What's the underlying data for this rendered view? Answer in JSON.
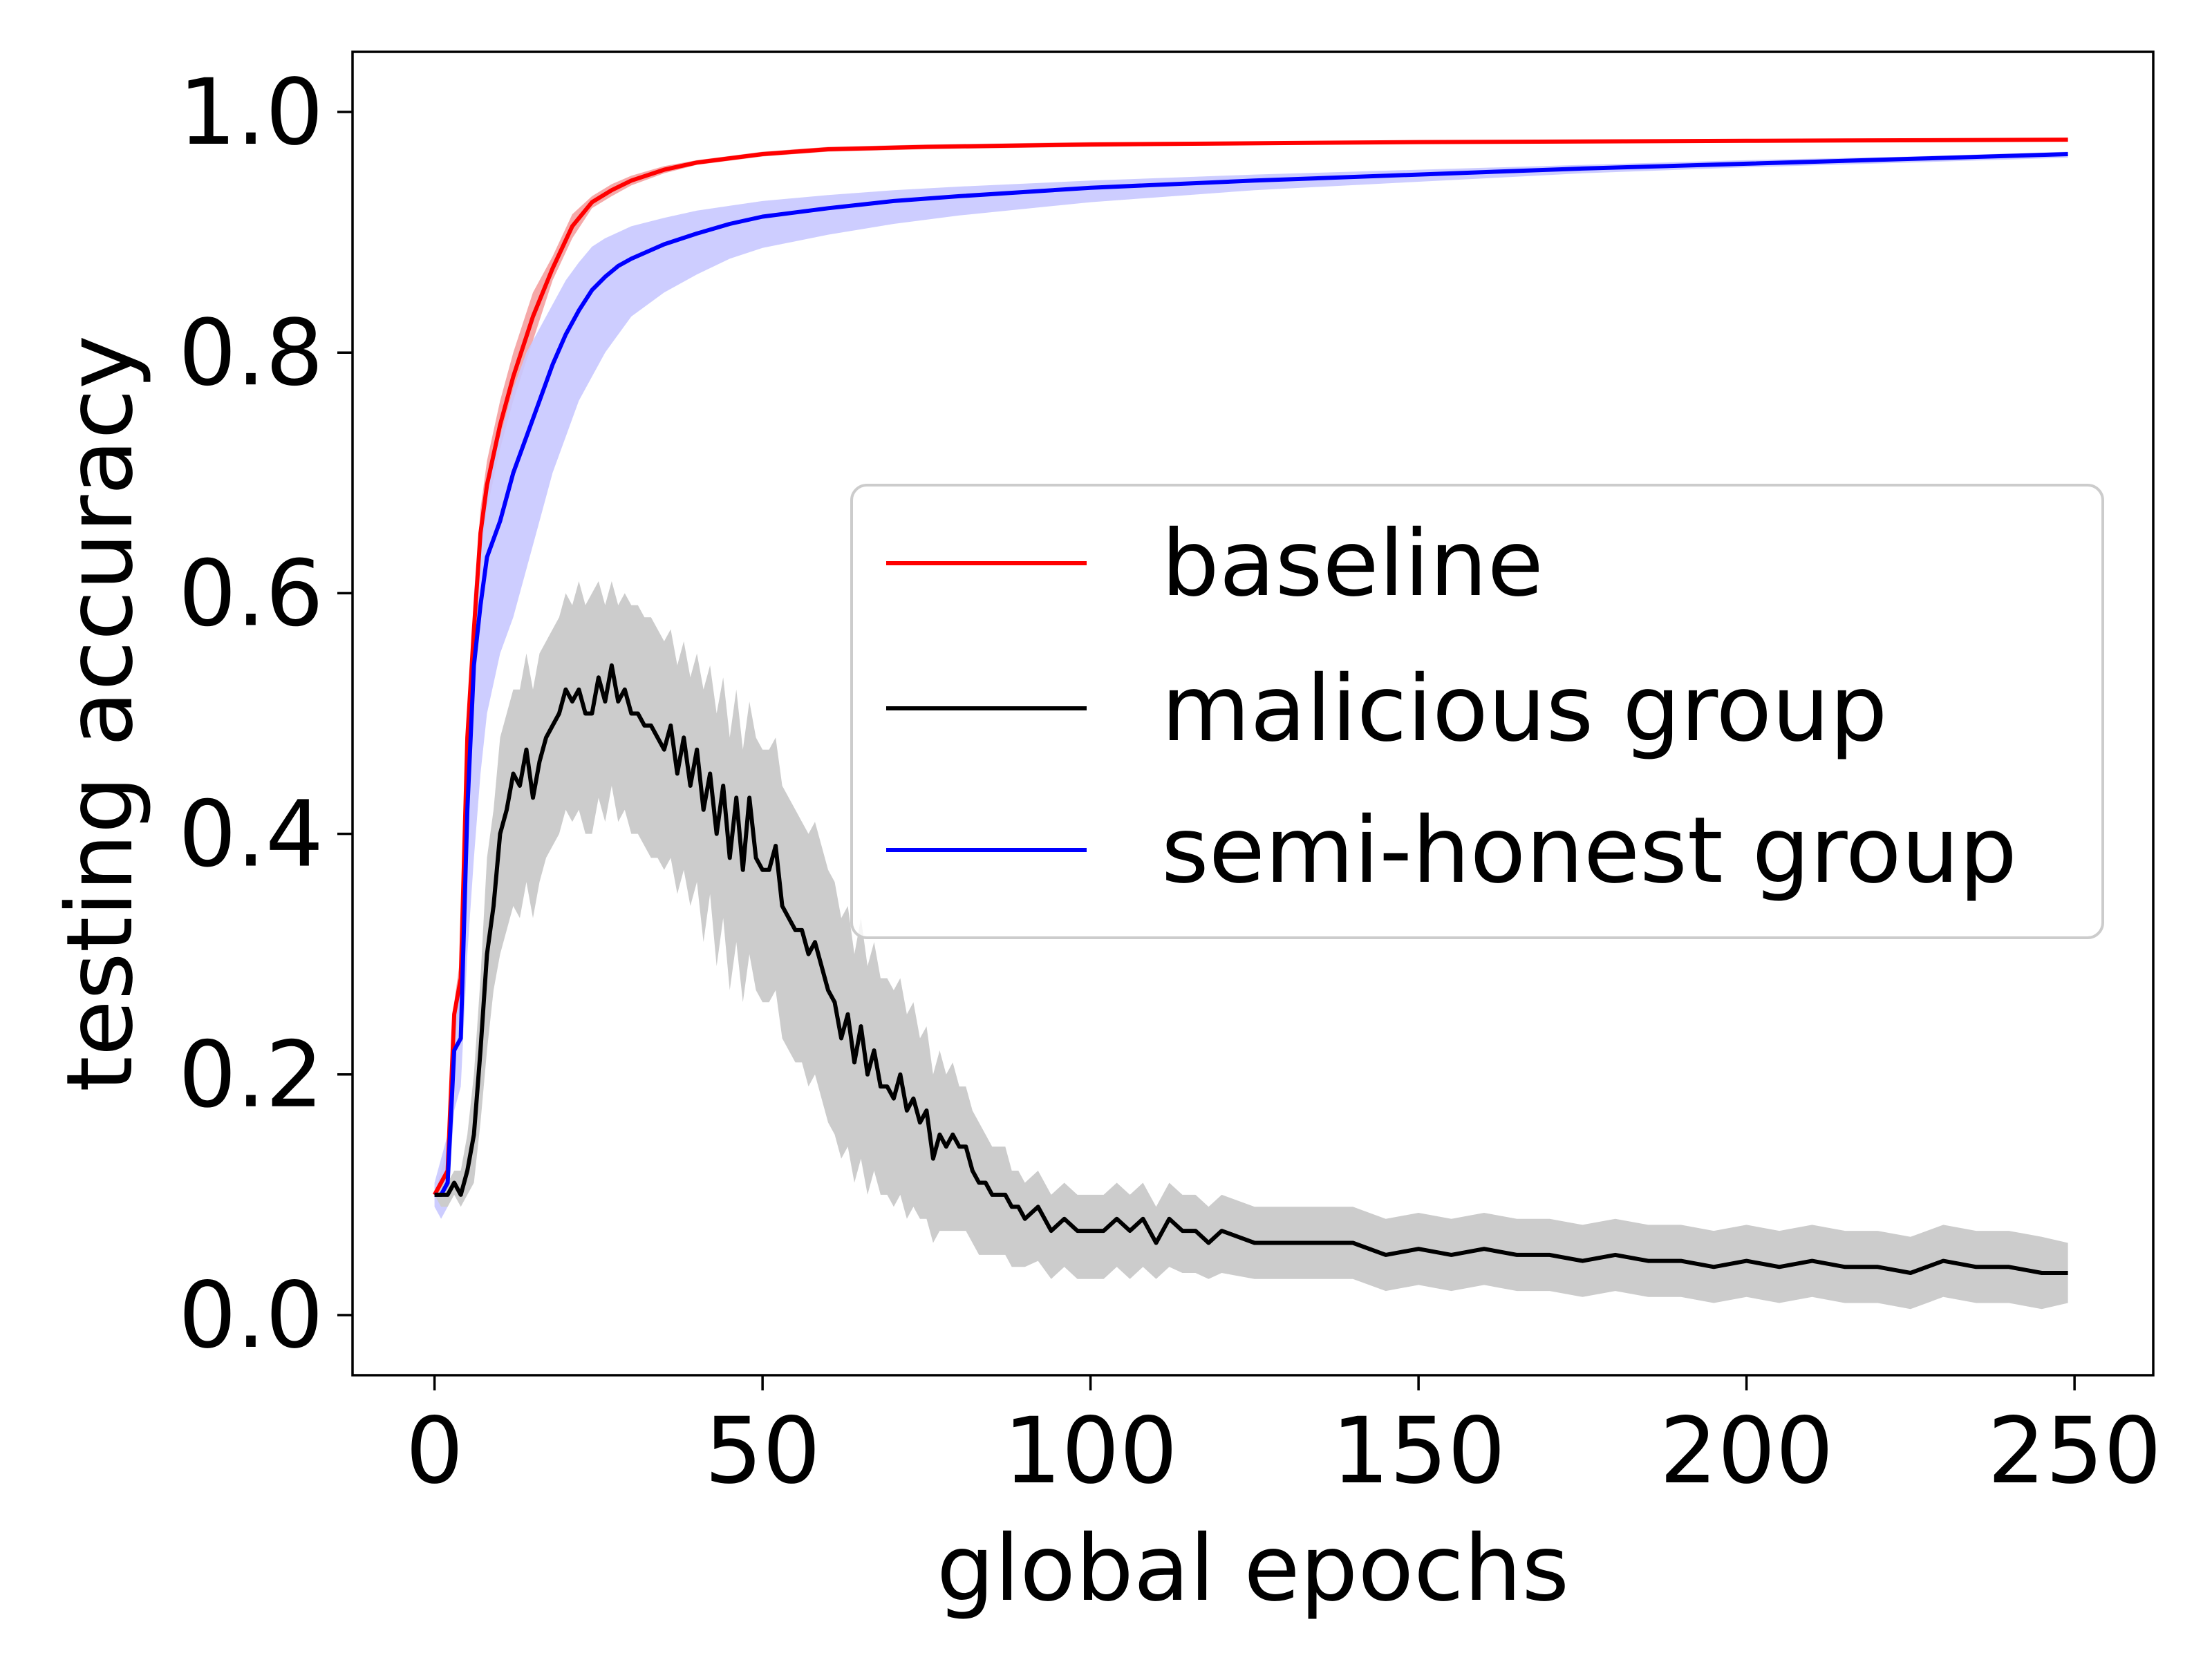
{
  "chart_data": {
    "type": "line",
    "xlabel": "global epochs",
    "ylabel": "testing accuracy",
    "xlim": [
      -12.5,
      262
    ],
    "ylim": [
      -0.05,
      1.05
    ],
    "xticks": [
      0,
      50,
      100,
      150,
      200,
      250
    ],
    "yticks": [
      0.0,
      0.2,
      0.4,
      0.6,
      0.8,
      1.0
    ],
    "xtick_labels": [
      "0",
      "50",
      "100",
      "150",
      "200",
      "250"
    ],
    "ytick_labels": [
      "0.0",
      "0.2",
      "0.4",
      "0.6",
      "0.8",
      "1.0"
    ],
    "grid": false,
    "legend_position": "center-right",
    "series": [
      {
        "name": "baseline",
        "color": "#ff0000",
        "band_color": "#f4a0a0",
        "x": [
          0,
          1,
          2,
          3,
          4,
          5,
          6,
          7,
          8,
          10,
          12,
          15,
          18,
          21,
          24,
          27,
          30,
          35,
          40,
          50,
          60,
          75,
          100,
          150,
          200,
          249
        ],
        "y": [
          0.1,
          0.11,
          0.12,
          0.25,
          0.28,
          0.48,
          0.57,
          0.65,
          0.69,
          0.74,
          0.78,
          0.83,
          0.87,
          0.905,
          0.925,
          0.935,
          0.943,
          0.952,
          0.958,
          0.965,
          0.969,
          0.971,
          0.973,
          0.975,
          0.976,
          0.977
        ],
        "upper": [
          0.1,
          0.12,
          0.14,
          0.26,
          0.3,
          0.5,
          0.59,
          0.67,
          0.71,
          0.76,
          0.8,
          0.85,
          0.88,
          0.915,
          0.93,
          0.94,
          0.947,
          0.955,
          0.96,
          0.967,
          0.971,
          0.973,
          0.975,
          0.976,
          0.977,
          0.978
        ],
        "lower": [
          0.1,
          0.1,
          0.11,
          0.23,
          0.26,
          0.46,
          0.55,
          0.63,
          0.67,
          0.72,
          0.76,
          0.81,
          0.86,
          0.895,
          0.92,
          0.93,
          0.939,
          0.949,
          0.956,
          0.963,
          0.967,
          0.969,
          0.971,
          0.974,
          0.975,
          0.976
        ]
      },
      {
        "name": "malicious group",
        "color": "#000000",
        "band_color": "#cccccc",
        "x": [
          0,
          1,
          2,
          3,
          4,
          5,
          6,
          7,
          8,
          9,
          10,
          11,
          12,
          13,
          14,
          15,
          16,
          17,
          18,
          19,
          20,
          21,
          22,
          23,
          24,
          25,
          26,
          27,
          28,
          29,
          30,
          31,
          32,
          33,
          34,
          35,
          36,
          37,
          38,
          39,
          40,
          41,
          42,
          43,
          44,
          45,
          46,
          47,
          48,
          49,
          50,
          51,
          52,
          53,
          54,
          55,
          56,
          57,
          58,
          59,
          60,
          61,
          62,
          63,
          64,
          65,
          66,
          67,
          68,
          69,
          70,
          71,
          72,
          73,
          74,
          75,
          76,
          77,
          78,
          79,
          80,
          81,
          82,
          83,
          84,
          85,
          86,
          87,
          88,
          89,
          90,
          92,
          94,
          96,
          98,
          100,
          102,
          104,
          106,
          108,
          110,
          112,
          114,
          116,
          118,
          120,
          125,
          130,
          135,
          140,
          145,
          150,
          155,
          160,
          165,
          170,
          175,
          180,
          185,
          190,
          195,
          200,
          205,
          210,
          215,
          220,
          225,
          230,
          235,
          240,
          245,
          249
        ],
        "y": [
          0.1,
          0.1,
          0.1,
          0.11,
          0.1,
          0.12,
          0.15,
          0.22,
          0.3,
          0.34,
          0.4,
          0.42,
          0.45,
          0.44,
          0.47,
          0.43,
          0.46,
          0.48,
          0.49,
          0.5,
          0.52,
          0.51,
          0.52,
          0.5,
          0.5,
          0.53,
          0.51,
          0.54,
          0.51,
          0.52,
          0.5,
          0.5,
          0.49,
          0.49,
          0.48,
          0.47,
          0.49,
          0.45,
          0.48,
          0.44,
          0.47,
          0.42,
          0.45,
          0.4,
          0.44,
          0.38,
          0.43,
          0.37,
          0.43,
          0.38,
          0.37,
          0.37,
          0.39,
          0.34,
          0.33,
          0.32,
          0.32,
          0.3,
          0.31,
          0.29,
          0.27,
          0.26,
          0.23,
          0.25,
          0.21,
          0.24,
          0.2,
          0.22,
          0.19,
          0.19,
          0.18,
          0.2,
          0.17,
          0.18,
          0.16,
          0.17,
          0.13,
          0.15,
          0.14,
          0.15,
          0.14,
          0.14,
          0.12,
          0.11,
          0.11,
          0.1,
          0.1,
          0.1,
          0.09,
          0.09,
          0.08,
          0.09,
          0.07,
          0.08,
          0.07,
          0.07,
          0.07,
          0.08,
          0.07,
          0.08,
          0.06,
          0.08,
          0.07,
          0.07,
          0.06,
          0.07,
          0.06,
          0.06,
          0.06,
          0.06,
          0.05,
          0.055,
          0.05,
          0.055,
          0.05,
          0.05,
          0.045,
          0.05,
          0.045,
          0.045,
          0.04,
          0.045,
          0.04,
          0.045,
          0.04,
          0.04,
          0.035,
          0.045,
          0.04,
          0.04,
          0.035,
          0.035
        ],
        "upper": [
          0.1,
          0.11,
          0.11,
          0.12,
          0.12,
          0.15,
          0.2,
          0.28,
          0.38,
          0.42,
          0.48,
          0.5,
          0.52,
          0.52,
          0.55,
          0.52,
          0.55,
          0.56,
          0.57,
          0.58,
          0.6,
          0.59,
          0.61,
          0.59,
          0.6,
          0.61,
          0.59,
          0.61,
          0.59,
          0.6,
          0.59,
          0.59,
          0.58,
          0.58,
          0.57,
          0.56,
          0.57,
          0.54,
          0.56,
          0.53,
          0.55,
          0.52,
          0.54,
          0.5,
          0.53,
          0.48,
          0.52,
          0.47,
          0.51,
          0.48,
          0.47,
          0.47,
          0.48,
          0.44,
          0.43,
          0.42,
          0.41,
          0.4,
          0.41,
          0.39,
          0.37,
          0.36,
          0.33,
          0.34,
          0.3,
          0.33,
          0.29,
          0.31,
          0.28,
          0.28,
          0.27,
          0.28,
          0.25,
          0.26,
          0.23,
          0.24,
          0.2,
          0.22,
          0.2,
          0.21,
          0.19,
          0.19,
          0.17,
          0.16,
          0.15,
          0.14,
          0.14,
          0.14,
          0.12,
          0.12,
          0.11,
          0.12,
          0.1,
          0.11,
          0.1,
          0.1,
          0.1,
          0.11,
          0.1,
          0.11,
          0.09,
          0.11,
          0.1,
          0.1,
          0.09,
          0.1,
          0.09,
          0.09,
          0.09,
          0.09,
          0.08,
          0.085,
          0.08,
          0.085,
          0.08,
          0.08,
          0.075,
          0.08,
          0.075,
          0.075,
          0.07,
          0.075,
          0.07,
          0.075,
          0.07,
          0.07,
          0.065,
          0.075,
          0.07,
          0.07,
          0.065,
          0.06
        ],
        "lower": [
          0.1,
          0.09,
          0.09,
          0.1,
          0.09,
          0.1,
          0.11,
          0.16,
          0.22,
          0.27,
          0.3,
          0.32,
          0.34,
          0.33,
          0.36,
          0.33,
          0.36,
          0.38,
          0.39,
          0.4,
          0.42,
          0.41,
          0.42,
          0.4,
          0.4,
          0.43,
          0.41,
          0.44,
          0.41,
          0.42,
          0.4,
          0.4,
          0.39,
          0.38,
          0.38,
          0.37,
          0.38,
          0.35,
          0.37,
          0.34,
          0.36,
          0.31,
          0.35,
          0.29,
          0.33,
          0.27,
          0.31,
          0.26,
          0.3,
          0.27,
          0.26,
          0.26,
          0.27,
          0.23,
          0.22,
          0.21,
          0.21,
          0.19,
          0.2,
          0.18,
          0.16,
          0.15,
          0.13,
          0.14,
          0.11,
          0.13,
          0.1,
          0.12,
          0.1,
          0.1,
          0.09,
          0.1,
          0.08,
          0.09,
          0.08,
          0.08,
          0.06,
          0.07,
          0.07,
          0.07,
          0.07,
          0.07,
          0.06,
          0.05,
          0.05,
          0.05,
          0.05,
          0.05,
          0.04,
          0.04,
          0.04,
          0.045,
          0.03,
          0.04,
          0.03,
          0.03,
          0.03,
          0.04,
          0.03,
          0.04,
          0.03,
          0.04,
          0.035,
          0.035,
          0.03,
          0.035,
          0.03,
          0.03,
          0.03,
          0.03,
          0.02,
          0.025,
          0.02,
          0.025,
          0.02,
          0.02,
          0.015,
          0.02,
          0.015,
          0.015,
          0.01,
          0.015,
          0.01,
          0.015,
          0.01,
          0.01,
          0.005,
          0.015,
          0.01,
          0.01,
          0.005,
          0.01
        ]
      },
      {
        "name": "semi-honest group",
        "color": "#0000ff",
        "band_color": "#c8c8ff",
        "x": [
          0,
          1,
          2,
          3,
          4,
          5,
          6,
          7,
          8,
          10,
          12,
          14,
          16,
          18,
          20,
          22,
          24,
          26,
          28,
          30,
          35,
          40,
          45,
          50,
          60,
          70,
          80,
          100,
          125,
          150,
          175,
          200,
          225,
          249
        ],
        "y": [
          0.1,
          0.1,
          0.11,
          0.22,
          0.23,
          0.42,
          0.54,
          0.59,
          0.63,
          0.66,
          0.7,
          0.73,
          0.76,
          0.79,
          0.815,
          0.835,
          0.852,
          0.863,
          0.872,
          0.878,
          0.89,
          0.899,
          0.907,
          0.913,
          0.92,
          0.926,
          0.93,
          0.937,
          0.943,
          0.948,
          0.953,
          0.957,
          0.961,
          0.965
        ],
        "upper": [
          0.11,
          0.13,
          0.15,
          0.26,
          0.28,
          0.48,
          0.6,
          0.66,
          0.7,
          0.73,
          0.77,
          0.8,
          0.82,
          0.84,
          0.86,
          0.875,
          0.888,
          0.895,
          0.9,
          0.905,
          0.912,
          0.918,
          0.922,
          0.926,
          0.931,
          0.935,
          0.938,
          0.943,
          0.948,
          0.952,
          0.956,
          0.96,
          0.963,
          0.967
        ],
        "lower": [
          0.09,
          0.08,
          0.09,
          0.17,
          0.19,
          0.3,
          0.38,
          0.45,
          0.5,
          0.55,
          0.58,
          0.62,
          0.66,
          0.7,
          0.73,
          0.76,
          0.78,
          0.8,
          0.815,
          0.83,
          0.85,
          0.865,
          0.878,
          0.887,
          0.898,
          0.907,
          0.914,
          0.925,
          0.935,
          0.942,
          0.949,
          0.954,
          0.958,
          0.962
        ]
      }
    ]
  }
}
